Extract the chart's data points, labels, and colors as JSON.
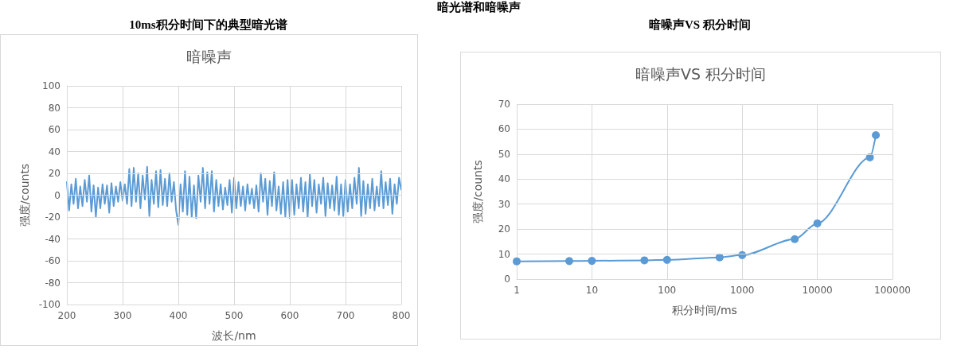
{
  "chart_data": [
    {
      "type": "line",
      "title": "10ms积分时间下的典型暗光谱",
      "subtitle": "暗噪声",
      "xlabel": "波长/nm",
      "ylabel": "强度/counts",
      "annotations": [
        "暗光谱和暗噪声"
      ],
      "x": [
        200,
        204,
        208,
        212,
        216,
        220,
        224,
        228,
        232,
        236,
        240,
        244,
        248,
        252,
        256,
        260,
        264,
        268,
        272,
        276,
        280,
        284,
        288,
        292,
        296,
        300,
        304,
        308,
        312,
        316,
        320,
        324,
        328,
        332,
        336,
        340,
        344,
        348,
        352,
        356,
        360,
        364,
        368,
        372,
        376,
        380,
        384,
        388,
        392,
        396,
        400,
        404,
        408,
        412,
        416,
        420,
        424,
        428,
        432,
        436,
        440,
        444,
        448,
        452,
        456,
        460,
        464,
        468,
        472,
        476,
        480,
        484,
        488,
        492,
        496,
        500,
        504,
        508,
        512,
        516,
        520,
        524,
        528,
        532,
        536,
        540,
        544,
        548,
        552,
        556,
        560,
        564,
        568,
        572,
        576,
        580,
        584,
        588,
        592,
        596,
        600,
        604,
        608,
        612,
        616,
        620,
        624,
        628,
        632,
        636,
        640,
        644,
        648,
        652,
        656,
        660,
        664,
        668,
        672,
        676,
        680,
        684,
        688,
        692,
        696,
        700,
        704,
        708,
        712,
        716,
        720,
        724,
        728,
        732,
        736,
        740,
        744,
        748,
        752,
        756,
        760,
        764,
        768,
        772,
        776,
        780,
        784,
        788,
        792,
        796,
        800
      ],
      "series": [
        {
          "color": "#5b9bd5",
          "values": [
            12,
            -14,
            10,
            -8,
            15,
            -12,
            8,
            -10,
            14,
            -6,
            18,
            -15,
            9,
            -20,
            7,
            -12,
            10,
            -8,
            9,
            -16,
            11,
            -10,
            8,
            -6,
            12,
            -5,
            10,
            -8,
            24,
            -10,
            25,
            -6,
            20,
            -12,
            18,
            -4,
            26,
            -19,
            14,
            -8,
            22,
            -11,
            23,
            -9,
            15,
            -10,
            20,
            -6,
            12,
            -14,
            -27,
            10,
            -15,
            22,
            -18,
            17,
            -20,
            9,
            -21,
            18,
            -6,
            25,
            -12,
            21,
            -8,
            22,
            -15,
            14,
            -10,
            10,
            -13,
            7,
            -9,
            14,
            -16,
            16,
            -12,
            12,
            -10,
            8,
            -14,
            10,
            -8,
            6,
            -12,
            9,
            -15,
            20,
            -6,
            15,
            -18,
            13,
            -10,
            21,
            -14,
            8,
            -17,
            12,
            -20,
            14,
            -21,
            14,
            -18,
            10,
            -12,
            16,
            -15,
            12,
            -20,
            19,
            -10,
            14,
            -16,
            10,
            -8,
            16,
            -19,
            11,
            -12,
            9,
            -14,
            17,
            -18,
            10,
            -19,
            14,
            -15,
            10,
            -12,
            16,
            -8,
            25,
            -19,
            13,
            -17,
            10,
            -12,
            15,
            -14,
            8,
            -10,
            22,
            -12,
            12,
            -9,
            15,
            -17,
            10,
            -8,
            16,
            5
          ]
        }
      ],
      "xlim": [
        200,
        800
      ],
      "xticks": [
        200,
        300,
        400,
        500,
        600,
        700,
        800
      ],
      "ylim": [
        -100,
        100
      ],
      "yticks": [
        -100,
        -80,
        -60,
        -40,
        -20,
        0,
        20,
        40,
        60,
        80,
        100
      ],
      "grid": true,
      "marker": "none",
      "line_style": "solid"
    },
    {
      "type": "line",
      "title": "暗噪声VS 积分时间",
      "subtitle": "暗噪声VS 积分时间",
      "xlabel": "积分时间/ms",
      "ylabel": "强度/counts",
      "x": [
        1,
        5,
        10,
        50,
        100,
        500,
        1000,
        5000,
        10000,
        50000,
        60000
      ],
      "series": [
        {
          "color": "#5b9bd5",
          "values": [
            7.1,
            7.2,
            7.3,
            7.5,
            7.7,
            8.7,
            9.6,
            16,
            22.3,
            48.7,
            57.6
          ]
        }
      ],
      "xlim": [
        1,
        100000
      ],
      "xticks": [
        1,
        10,
        100,
        1000,
        10000,
        100000
      ],
      "ylim": [
        0,
        70
      ],
      "yticks": [
        0,
        10,
        20,
        30,
        40,
        50,
        60,
        70
      ],
      "log": "x",
      "grid": true,
      "marker": "circle",
      "line_style": "solid"
    }
  ]
}
